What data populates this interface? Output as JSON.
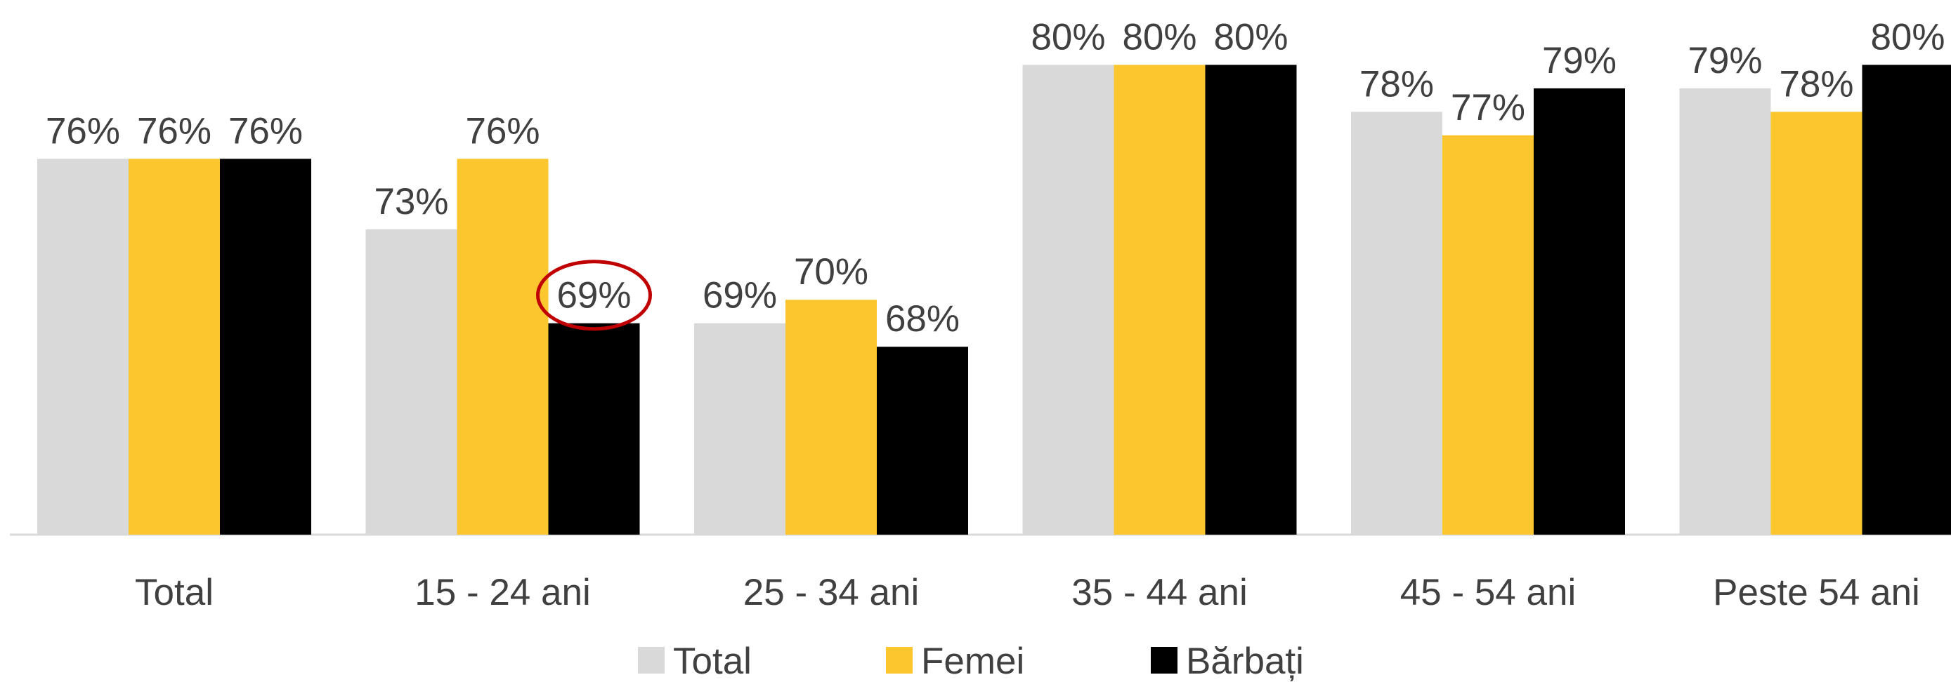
{
  "chart_data": {
    "type": "bar",
    "categories": [
      "Total",
      "15 - 24 ani",
      "25 - 34 ani",
      "35 - 44 ani",
      "45 - 54 ani",
      "Peste 54 ani"
    ],
    "series": [
      {
        "name": "Total",
        "color": "#d9d9d9",
        "values": [
          76,
          73,
          69,
          80,
          78,
          79
        ],
        "value_labels": [
          "76%",
          "73%",
          "69%",
          "80%",
          "78%",
          "79%"
        ]
      },
      {
        "name": "Femei",
        "color": "#fcc72e",
        "values": [
          76,
          76,
          70,
          80,
          77,
          78
        ],
        "value_labels": [
          "76%",
          "76%",
          "70%",
          "80%",
          "77%",
          "78%"
        ]
      },
      {
        "name": "Bărbați",
        "color": "#000000",
        "values": [
          76,
          69,
          68,
          80,
          79,
          80
        ],
        "value_labels": [
          "76%",
          "69%",
          "68%",
          "80%",
          "79%",
          "80%"
        ]
      }
    ],
    "ylim": [
      60,
      83
    ],
    "legend": "bottom"
  }
}
